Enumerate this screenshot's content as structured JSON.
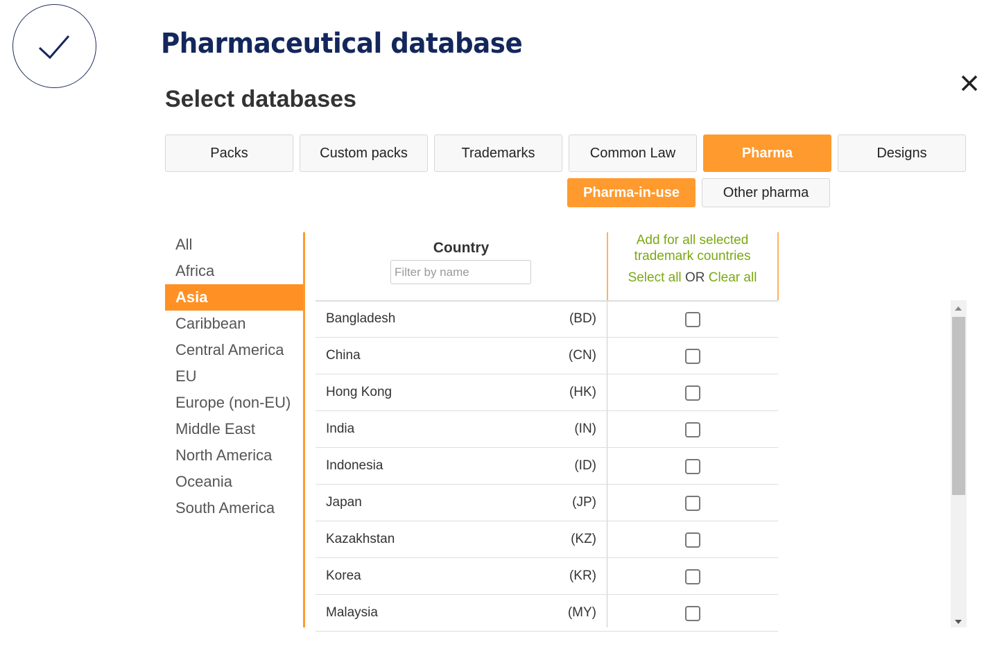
{
  "header": {
    "title": "Pharmaceutical database",
    "subtitle": "Select databases",
    "logo_icon": "checkmark-icon",
    "close_icon": "close-icon"
  },
  "tabs": [
    {
      "label": "Packs"
    },
    {
      "label": "Custom packs"
    },
    {
      "label": "Trademarks"
    },
    {
      "label": "Common Law"
    },
    {
      "label": "Pharma",
      "active": true
    },
    {
      "label": "Designs"
    }
  ],
  "subtabs": [
    {
      "label": "Pharma-in-use",
      "active": true
    },
    {
      "label": "Other pharma"
    }
  ],
  "regions": [
    "All",
    "Africa",
    "Asia",
    "Caribbean",
    "Central America",
    "EU",
    "Europe (non-EU)",
    "Middle East",
    "North America",
    "Oceania",
    "South America"
  ],
  "selected_region": "Asia",
  "table": {
    "country_header": "Country",
    "filter_placeholder": "Filter by name",
    "add_all_line1": "Add for all selected",
    "add_all_line2": "trademark countries",
    "select_all": "Select all",
    "or": "OR",
    "clear_all": "Clear all",
    "rows": [
      {
        "name": "Bangladesh",
        "code": "(BD)",
        "checked": false
      },
      {
        "name": "China",
        "code": "(CN)",
        "checked": false
      },
      {
        "name": "Hong Kong",
        "code": "(HK)",
        "checked": false
      },
      {
        "name": "India",
        "code": "(IN)",
        "checked": false
      },
      {
        "name": "Indonesia",
        "code": "(ID)",
        "checked": false
      },
      {
        "name": "Japan",
        "code": "(JP)",
        "checked": false
      },
      {
        "name": "Kazakhstan",
        "code": "(KZ)",
        "checked": false
      },
      {
        "name": "Korea",
        "code": "(KR)",
        "checked": false
      },
      {
        "name": "Malaysia",
        "code": "(MY)",
        "checked": false
      }
    ]
  },
  "colors": {
    "accent": "#ff9a2e",
    "title": "#13275c",
    "link": "#7aa812"
  }
}
